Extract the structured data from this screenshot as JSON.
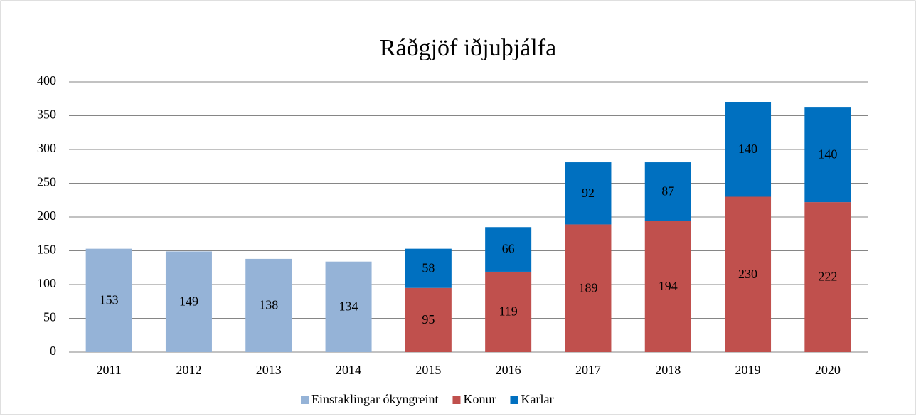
{
  "chart_data": {
    "type": "stacked_bar",
    "title": "Ráðgjöf iðjuþjálfa",
    "categories": [
      "2011",
      "2012",
      "2013",
      "2014",
      "2015",
      "2016",
      "2017",
      "2018",
      "2019",
      "2020"
    ],
    "series": [
      {
        "name": "Einstaklingar ókyngreint",
        "color": "#95b3d7",
        "values": [
          153,
          149,
          138,
          134,
          null,
          null,
          null,
          null,
          null,
          null
        ]
      },
      {
        "name": "Konur",
        "color": "#c0504d",
        "values": [
          null,
          null,
          null,
          null,
          95,
          119,
          189,
          194,
          230,
          222
        ]
      },
      {
        "name": "Karlar",
        "color": "#0070c0",
        "values": [
          null,
          null,
          null,
          null,
          58,
          66,
          92,
          87,
          140,
          140
        ]
      }
    ],
    "ylim": [
      0,
      400
    ],
    "yticks": [
      0,
      50,
      100,
      150,
      200,
      250,
      300,
      350,
      400
    ],
    "grid": true,
    "legend": "bottom"
  }
}
